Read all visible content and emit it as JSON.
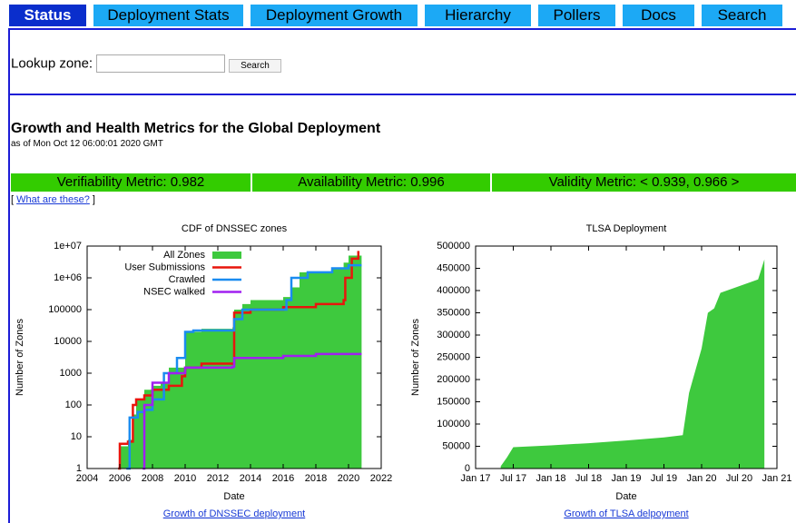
{
  "nav": [
    "Status",
    "Deployment Stats",
    "Deployment Growth",
    "Hierarchy",
    "Pollers",
    "Docs",
    "Search"
  ],
  "lookup": {
    "label": "Lookup zone:",
    "button": "Search"
  },
  "heading": {
    "title": "Growth and Health Metrics for the Global Deployment",
    "date": "as of Mon Oct 12 06:00:01 2020 GMT"
  },
  "metrics": [
    "Verifiability Metric: 0.982",
    "Availability Metric: 0.996",
    "Validity Metric: < 0.939, 0.966 >"
  ],
  "help_link": "What are these?",
  "chart_data": [
    {
      "type": "line",
      "title": "CDF of DNSSEC zones",
      "x_label": "Date",
      "y_label": "Number of Zones",
      "link": "Growth of DNSSEC deployment",
      "log_y": true,
      "step": true,
      "legend": "upper left",
      "grid": false,
      "xlim": [
        2004,
        2022
      ],
      "xticks": [
        2004,
        2006,
        2008,
        2010,
        2012,
        2014,
        2016,
        2018,
        2020,
        2022
      ],
      "ylim": [
        1,
        10000000
      ],
      "yticks": [
        1,
        10,
        100,
        1000,
        10000,
        100000,
        {
          "value": 1000000,
          "label": "1e+06"
        },
        {
          "value": 10000000,
          "label": "1e+07"
        }
      ],
      "series": [
        {
          "name": "All Zones",
          "color": "#3ec93e",
          "style": "area",
          "x": [
            2005.9,
            2006,
            2006.5,
            2006.8,
            2007,
            2007.5,
            2008,
            2008.5,
            2009,
            2010,
            2011,
            2012.9,
            2013,
            2013.5,
            2014,
            2016,
            2016.5,
            2017,
            2019,
            2019.7,
            2020,
            2020.8
          ],
          "values": [
            1,
            5,
            8,
            50,
            150,
            300,
            400,
            500,
            1500,
            20000,
            25000,
            28000,
            100000,
            150000,
            200000,
            250000,
            500000,
            1500000,
            2000000,
            3000000,
            5000000,
            8000000
          ]
        },
        {
          "name": "User Submissions",
          "color": "#e8160c",
          "style": "line",
          "x": [
            2005.9,
            2006,
            2006.5,
            2006.8,
            2007,
            2007.5,
            2008,
            2009,
            2009.8,
            2010,
            2011,
            2012.9,
            2013,
            2014,
            2016,
            2018,
            2019.7,
            2019.8,
            2020.2,
            2020.6
          ],
          "values": [
            1,
            6,
            7,
            100,
            150,
            200,
            300,
            400,
            800,
            1500,
            2000,
            2000,
            80000,
            100000,
            120000,
            150000,
            200000,
            1000000,
            4000000,
            7000000
          ]
        },
        {
          "name": "Crawled",
          "color": "#1a8cf0",
          "style": "line",
          "x": [
            2006.4,
            2006.6,
            2007.1,
            2007.5,
            2008,
            2008.7,
            2009.5,
            2010,
            2010.5,
            2012.9,
            2013,
            2013.5,
            2015,
            2016.2,
            2016.5,
            2017.5,
            2019,
            2020,
            2020.8
          ],
          "values": [
            1,
            40,
            60,
            70,
            150,
            1000,
            3000,
            20000,
            22000,
            22000,
            50000,
            100000,
            100000,
            200000,
            1000000,
            1500000,
            2000000,
            2500000,
            2500000
          ]
        },
        {
          "name": "NSEC walked",
          "color": "#a020f0",
          "style": "line",
          "x": [
            2007.4,
            2007.5,
            2008,
            2009,
            2010,
            2012.9,
            2013,
            2016,
            2018,
            2020.8
          ],
          "values": [
            1,
            100,
            500,
            1000,
            1500,
            1600,
            3000,
            3500,
            4000,
            4000
          ]
        }
      ]
    },
    {
      "type": "area",
      "title": "TLSA Deployment",
      "x_label": "Date",
      "y_label": "Number of Zones",
      "link": "Growth of TLSA delpoyment",
      "color": "#3ec93e",
      "grid": false,
      "xlim": [
        "2017-01",
        "2021-01"
      ],
      "xticks": [
        {
          "value": "2017-01",
          "label": "Jan 17"
        },
        {
          "value": "2017-07",
          "label": "Jul 17"
        },
        {
          "value": "2018-01",
          "label": "Jan 18"
        },
        {
          "value": "2018-07",
          "label": "Jul 18"
        },
        {
          "value": "2019-01",
          "label": "Jan 19"
        },
        {
          "value": "2019-07",
          "label": "Jul 19"
        },
        {
          "value": "2020-01",
          "label": "Jan 20"
        },
        {
          "value": "2020-07",
          "label": "Jul 20"
        },
        {
          "value": "2021-01",
          "label": "Jan 21"
        }
      ],
      "ylim": [
        0,
        500000
      ],
      "yticks": [
        0,
        50000,
        100000,
        150000,
        200000,
        250000,
        300000,
        350000,
        400000,
        450000,
        500000
      ],
      "x": [
        "2017-05",
        "2017-06",
        "2017-07",
        "2018-01",
        "2018-07",
        "2019-01",
        "2019-07",
        "2019-10",
        "2019-11",
        "2019-12",
        "2020-01",
        "2020-02",
        "2020-03",
        "2020-04",
        "2020-07",
        "2020-10",
        "2020-11"
      ],
      "values": [
        5000,
        25000,
        48000,
        52000,
        57000,
        63000,
        70000,
        75000,
        170000,
        220000,
        270000,
        350000,
        360000,
        395000,
        410000,
        425000,
        470000
      ]
    }
  ]
}
